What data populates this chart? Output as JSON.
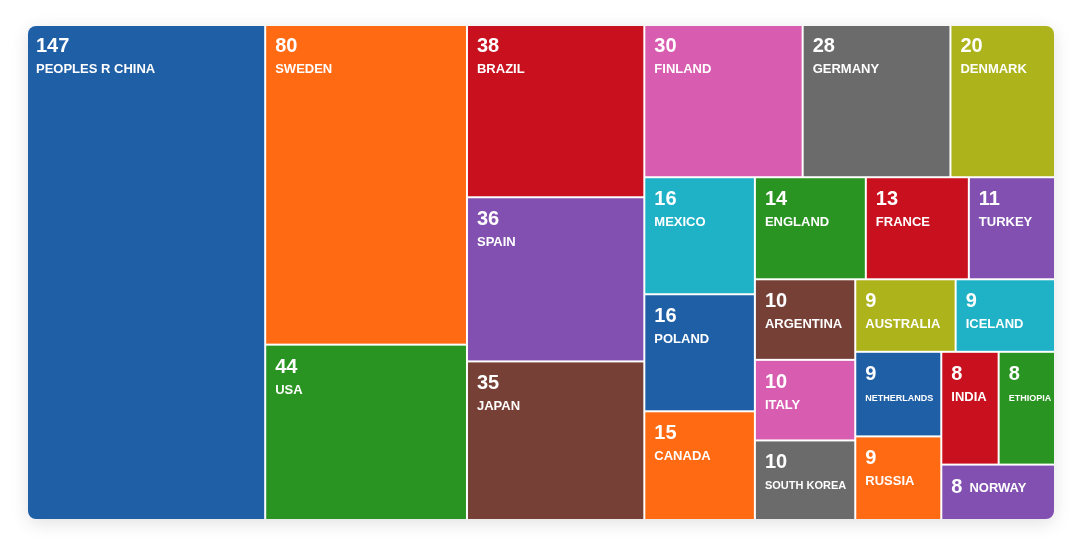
{
  "chart_data": {
    "type": "other",
    "categories": [
      "PEOPLES R CHINA",
      "SWEDEN",
      "USA",
      "BRAZIL",
      "SPAIN",
      "JAPAN",
      "FINLAND",
      "GERMANY",
      "DENMARK",
      "MEXICO",
      "POLAND",
      "CANADA",
      "ENGLAND",
      "FRANCE",
      "TURKEY",
      "ARGENTINA",
      "ITALY",
      "SOUTH KOREA",
      "AUSTRALIA",
      "ICELAND",
      "NETHERLANDS",
      "RUSSIA",
      "INDIA",
      "ETHIOPIA",
      "NORWAY"
    ],
    "values": [
      147,
      80,
      44,
      38,
      36,
      35,
      30,
      28,
      20,
      16,
      16,
      15,
      14,
      13,
      11,
      10,
      10,
      10,
      9,
      9,
      9,
      9,
      8,
      8,
      8
    ],
    "colors": [
      "#1f5fa6",
      "#ff6a13",
      "#2a9422",
      "#c8101e",
      "#8150b0",
      "#774036",
      "#d85cb0",
      "#6b6b6b",
      "#adb31b",
      "#1fb1c6",
      "#1f5fa6",
      "#ff6a13",
      "#2a9422",
      "#c8101e",
      "#8150b0",
      "#774036",
      "#d85cb0",
      "#6b6b6b",
      "#adb31b",
      "#1fb1c6",
      "#1f5fa6",
      "#ff6a13",
      "#c8101e",
      "#2a9422",
      "#8150b0"
    ],
    "data_labels": true
  }
}
